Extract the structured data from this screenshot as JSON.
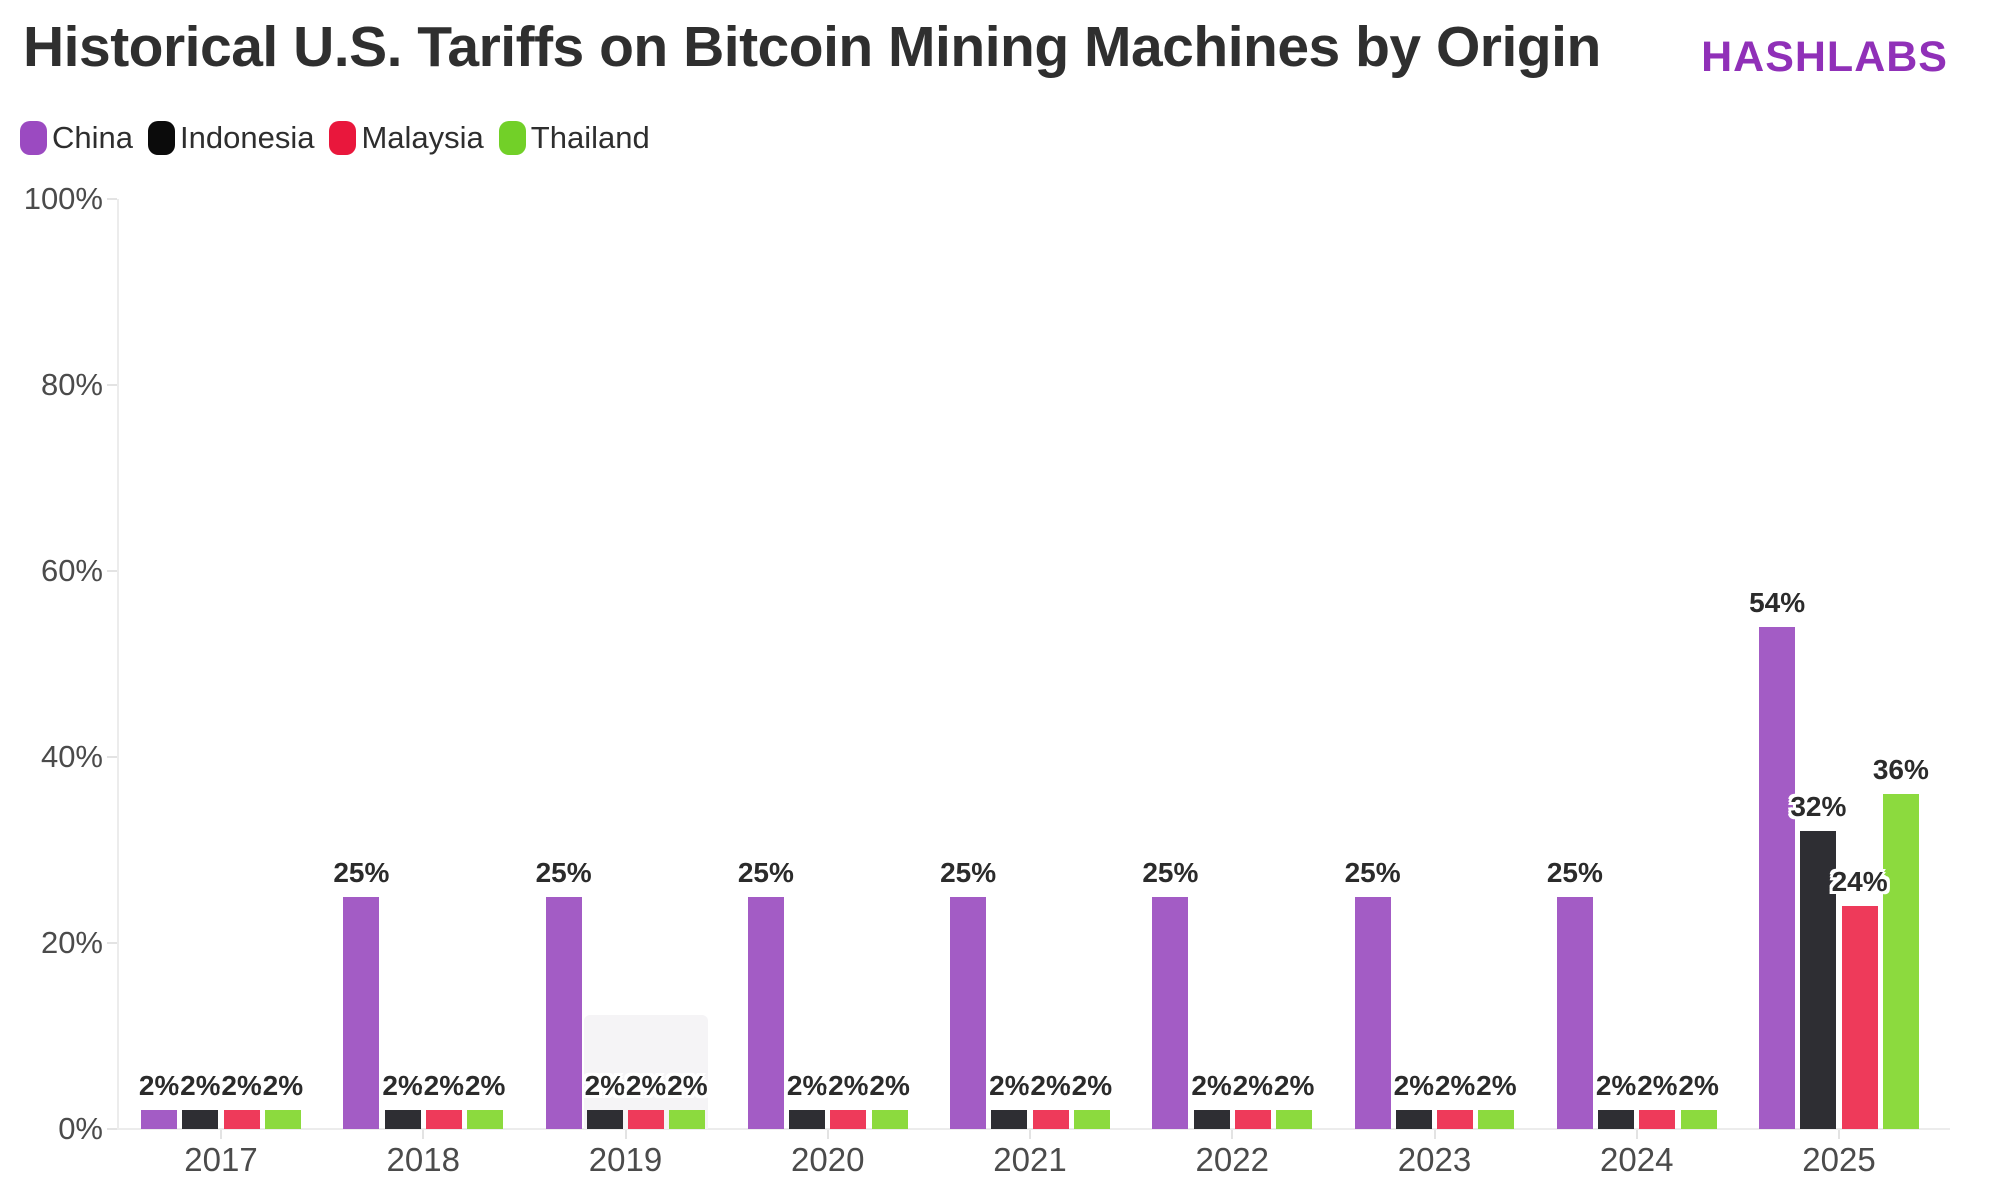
{
  "header": {
    "title": "Historical U.S. Tariffs on Bitcoin Mining Machines by Origin",
    "brand": "HASHLABS",
    "brand_color": "#9030b8"
  },
  "chart_data": {
    "type": "bar",
    "title": "Historical U.S. Tariffs on Bitcoin Mining Machines by Origin",
    "categories": [
      "2017",
      "2018",
      "2019",
      "2020",
      "2021",
      "2022",
      "2023",
      "2024",
      "2025"
    ],
    "series": [
      {
        "name": "China",
        "color": "#a35cc5",
        "legend_color": "#9b4ac1",
        "values": [
          2,
          25,
          25,
          25,
          25,
          25,
          25,
          25,
          54
        ]
      },
      {
        "name": "Indonesia",
        "color": "#2e2e33",
        "legend_color": "#0b0b0b",
        "values": [
          2,
          2,
          2,
          2,
          2,
          2,
          2,
          2,
          32
        ]
      },
      {
        "name": "Malaysia",
        "color": "#ee3a5a",
        "legend_color": "#e9173c",
        "values": [
          2,
          2,
          2,
          2,
          2,
          2,
          2,
          2,
          24
        ]
      },
      {
        "name": "Thailand",
        "color": "#8cda3e",
        "legend_color": "#72d028",
        "values": [
          2,
          2,
          2,
          2,
          2,
          2,
          2,
          2,
          36
        ]
      }
    ],
    "value_suffix": "%",
    "data_labels": true,
    "xlabel": "",
    "ylabel": "",
    "ylim": [
      0,
      100
    ],
    "yticks": [
      0,
      20,
      40,
      60,
      80,
      100
    ],
    "ytick_labels": [
      "0%",
      "20%",
      "40%",
      "60%",
      "80%",
      "100%"
    ],
    "grid": false,
    "legend_position": "top-left",
    "highlight": {
      "category": "2019",
      "covers_series": [
        "Indonesia",
        "Malaysia",
        "Thailand"
      ]
    }
  }
}
